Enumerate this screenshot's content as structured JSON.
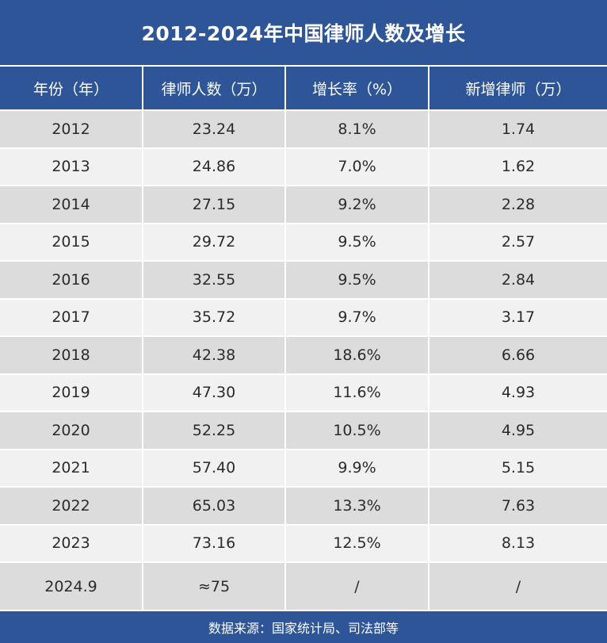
{
  "title": "2012-2024年中国律师人数及增长",
  "colors": {
    "header": "#2e5597",
    "row_dark": "#dcdcdc",
    "row_light": "#f1f1f1"
  },
  "chart_data": {
    "type": "table",
    "title": "2012-2024年中国律师人数及增长",
    "columns": [
      "年份（年）",
      "律师人数（万）",
      "增长率（%）",
      "新增律师（万）"
    ],
    "rows": [
      [
        "2012",
        "23.24",
        "8.1%",
        "1.74"
      ],
      [
        "2013",
        "24.86",
        "7.0%",
        "1.62"
      ],
      [
        "2014",
        "27.15",
        "9.2%",
        "2.28"
      ],
      [
        "2015",
        "29.72",
        "9.5%",
        "2.57"
      ],
      [
        "2016",
        "32.55",
        "9.5%",
        "2.84"
      ],
      [
        "2017",
        "35.72",
        "9.7%",
        "3.17"
      ],
      [
        "2018",
        "42.38",
        "18.6%",
        "6.66"
      ],
      [
        "2019",
        "47.30",
        "11.6%",
        "4.93"
      ],
      [
        "2020",
        "52.25",
        "10.5%",
        "4.95"
      ],
      [
        "2021",
        "57.40",
        "9.9%",
        "5.15"
      ],
      [
        "2022",
        "65.03",
        "13.3%",
        "7.63"
      ],
      [
        "2023",
        "73.16",
        "12.5%",
        "8.13"
      ],
      [
        "2024.9",
        "≈75",
        "/",
        "/"
      ]
    ],
    "source": "数据来源：国家统计局、司法部等"
  }
}
